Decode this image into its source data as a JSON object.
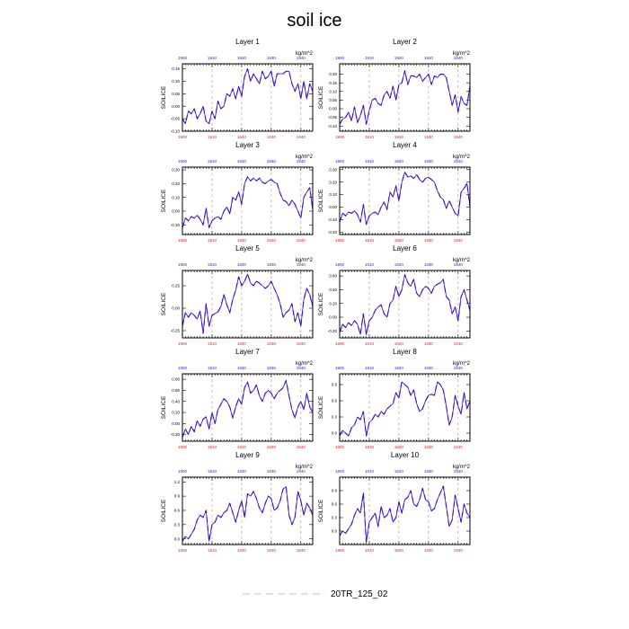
{
  "figure": {
    "title": "soil ice",
    "legend": {
      "label": "20TR_125_02",
      "line_color": "#c9b4ee"
    },
    "colors": {
      "series": "#1d10d6",
      "series_overlay": "#b13bd3",
      "top_tick_labels": "#1a1aff",
      "bottom_tick_labels": "#e61919",
      "grid": "#9a9a9a"
    }
  },
  "chart_data": [
    {
      "type": "line",
      "title": "Layer 1",
      "ylabel": "SOILICE",
      "units": "kg/m^2",
      "xlim": [
        1900,
        1944
      ],
      "ylim": [
        -0.1,
        0.17
      ],
      "x_ticks": [
        1900,
        1910,
        1920,
        1930,
        1940
      ],
      "y_ticks": [
        -0.1,
        -0.05,
        0.0,
        0.05,
        0.1,
        0.15
      ],
      "y_tick_labels": [
        "-0.10",
        "-0.05",
        "0.00",
        "0.05",
        "0.10",
        "0.15"
      ],
      "grid": "vertical dashed at x ticks",
      "series": [
        {
          "x_start": 1900,
          "values": [
            -0.05,
            -0.07,
            -0.02,
            -0.03,
            -0.01,
            -0.05,
            -0.03,
            0.0,
            -0.06,
            -0.07,
            -0.02,
            -0.05,
            0.02,
            -0.01,
            0.0,
            0.05,
            0.04,
            0.07,
            0.03,
            0.08,
            0.04,
            0.12,
            0.15,
            0.1,
            0.13,
            0.11,
            0.09,
            0.14,
            0.11,
            0.12,
            0.14,
            0.08,
            0.13,
            0.13,
            0.13,
            0.14,
            0.14,
            0.09,
            0.06,
            0.09,
            0.03,
            0.1,
            0.03,
            0.09,
            0.06
          ]
        }
      ]
    },
    {
      "type": "line",
      "title": "Layer 2",
      "ylabel": "SOILICE",
      "units": "kg/m^2",
      "xlim": [
        1900,
        1944
      ],
      "ylim": [
        -0.13,
        0.26
      ],
      "x_ticks": [
        1900,
        1910,
        1920,
        1930,
        1940
      ],
      "y_ticks": [
        -0.1,
        -0.05,
        0.0,
        0.05,
        0.1,
        0.15,
        0.2
      ],
      "y_tick_labels": [
        "-0.10",
        "-0.05",
        "0.00",
        "0.05",
        "0.10",
        "0.15",
        "0.20"
      ],
      "grid": "vertical dashed at x ticks",
      "series": [
        {
          "x_start": 1900,
          "values": [
            -0.09,
            -0.06,
            -0.05,
            -0.02,
            -0.07,
            0.01,
            -0.08,
            -0.04,
            0.02,
            -0.09,
            -0.01,
            0.05,
            0.06,
            0.03,
            0.02,
            0.08,
            0.1,
            0.06,
            0.13,
            0.05,
            0.14,
            0.15,
            0.22,
            0.14,
            0.19,
            0.19,
            0.18,
            0.2,
            0.16,
            0.18,
            0.2,
            0.14,
            0.19,
            0.18,
            0.2,
            0.2,
            0.18,
            0.1,
            0.02,
            0.08,
            -0.02,
            0.07,
            0.03,
            0.02,
            0.13
          ]
        }
      ]
    },
    {
      "type": "line",
      "title": "Layer 3",
      "ylabel": "SOILICE",
      "units": "kg/m^2",
      "xlim": [
        1900,
        1944
      ],
      "ylim": [
        -0.17,
        0.32
      ],
      "x_ticks": [
        1900,
        1910,
        1920,
        1930,
        1940
      ],
      "y_ticks": [
        -0.1,
        0.0,
        0.1,
        0.2,
        0.3
      ],
      "y_tick_labels": [
        "-0.10",
        "0.00",
        "0.10",
        "0.20",
        "0.30"
      ],
      "grid": "vertical dashed at x ticks",
      "series": [
        {
          "x_start": 1900,
          "values": [
            -0.12,
            -0.05,
            -0.07,
            -0.04,
            -0.05,
            -0.03,
            -0.06,
            -0.1,
            0.02,
            -0.12,
            -0.07,
            -0.05,
            -0.04,
            -0.06,
            0.0,
            0.03,
            -0.02,
            0.1,
            0.08,
            0.14,
            0.05,
            0.2,
            0.25,
            0.22,
            0.24,
            0.22,
            0.24,
            0.21,
            0.2,
            0.22,
            0.23,
            0.21,
            0.2,
            0.13,
            0.08,
            0.07,
            0.04,
            0.08,
            0.05,
            0.0,
            -0.05,
            0.1,
            0.14,
            0.17,
            0.01
          ]
        }
      ]
    },
    {
      "type": "line",
      "title": "Layer 4",
      "ylabel": "SOILICE",
      "units": "kg/m^2",
      "xlim": [
        1900,
        1944
      ],
      "ylim": [
        -0.22,
        0.32
      ],
      "x_ticks": [
        1900,
        1910,
        1920,
        1930,
        1940
      ],
      "y_ticks": [
        -0.2,
        -0.1,
        0.0,
        0.1,
        0.2,
        0.3
      ],
      "y_tick_labels": [
        "-0.20",
        "-0.10",
        "0.00",
        "0.10",
        "0.20",
        "0.30"
      ],
      "grid": "vertical dashed at x ticks",
      "series": [
        {
          "x_start": 1900,
          "values": [
            -0.12,
            -0.05,
            -0.07,
            -0.04,
            -0.05,
            -0.03,
            -0.06,
            -0.12,
            0.02,
            -0.14,
            -0.07,
            -0.05,
            -0.04,
            -0.06,
            0.0,
            0.04,
            -0.02,
            0.12,
            0.08,
            0.17,
            0.05,
            0.2,
            0.28,
            0.24,
            0.25,
            0.23,
            0.26,
            0.22,
            0.2,
            0.23,
            0.24,
            0.22,
            0.2,
            0.13,
            0.08,
            0.06,
            -0.01,
            0.05,
            0.0,
            -0.05,
            -0.07,
            0.12,
            0.15,
            0.19,
            0.0
          ]
        }
      ]
    },
    {
      "type": "line",
      "title": "Layer 5",
      "ylabel": "SOILICE",
      "units": "kg/m^2",
      "xlim": [
        1900,
        1944
      ],
      "ylim": [
        -0.33,
        0.42
      ],
      "x_ticks": [
        1900,
        1910,
        1920,
        1930,
        1940
      ],
      "y_ticks": [
        -0.25,
        0.0,
        0.25
      ],
      "y_tick_labels": [
        "-0.25",
        "0.00",
        "0.25"
      ],
      "grid": "vertical dashed at x ticks",
      "series": [
        {
          "x_start": 1900,
          "values": [
            -0.2,
            -0.05,
            -0.1,
            -0.05,
            -0.08,
            -0.12,
            -0.03,
            -0.28,
            0.05,
            -0.2,
            -0.08,
            -0.06,
            -0.04,
            0.02,
            0.15,
            0.04,
            -0.05,
            0.1,
            0.2,
            0.35,
            0.25,
            0.3,
            0.38,
            0.28,
            0.25,
            0.3,
            0.28,
            0.25,
            0.22,
            0.25,
            0.3,
            0.22,
            0.15,
            0.05,
            -0.1,
            -0.05,
            -0.02,
            0.05,
            -0.15,
            -0.05,
            -0.2,
            0.1,
            0.22,
            0.15,
            0.02
          ]
        }
      ]
    },
    {
      "type": "line",
      "title": "Layer 6",
      "ylabel": "SOILICE",
      "units": "kg/m^2",
      "xlim": [
        1900,
        1944
      ],
      "ylim": [
        -0.3,
        0.68
      ],
      "x_ticks": [
        1900,
        1910,
        1920,
        1930,
        1940
      ],
      "y_ticks": [
        -0.2,
        0.0,
        0.2,
        0.4,
        0.6
      ],
      "y_tick_labels": [
        "-0.20",
        "0.00",
        "0.20",
        "0.40",
        "0.60"
      ],
      "grid": "vertical dashed at x ticks",
      "series": [
        {
          "x_start": 1900,
          "values": [
            -0.22,
            -0.1,
            -0.15,
            -0.08,
            -0.12,
            -0.05,
            -0.1,
            -0.25,
            0.05,
            -0.25,
            -0.05,
            0.0,
            0.1,
            0.15,
            0.18,
            0.05,
            0.0,
            0.2,
            0.25,
            0.45,
            0.3,
            0.4,
            0.62,
            0.5,
            0.45,
            0.55,
            0.35,
            0.3,
            0.4,
            0.45,
            0.42,
            0.35,
            0.45,
            0.48,
            0.5,
            0.55,
            0.3,
            0.25,
            0.05,
            0.15,
            -0.05,
            0.3,
            0.4,
            0.25,
            0.1
          ]
        }
      ]
    },
    {
      "type": "line",
      "title": "Layer 7",
      "ylabel": "SOILICE",
      "units": "kg/m^2",
      "xlim": [
        1900,
        1944
      ],
      "ylim": [
        -0.32,
        0.9
      ],
      "x_ticks": [
        1900,
        1910,
        1920,
        1930,
        1940
      ],
      "y_ticks": [
        -0.2,
        0.0,
        0.2,
        0.4,
        0.6,
        0.8
      ],
      "y_tick_labels": [
        "-0.20",
        "0.00",
        "0.20",
        "0.40",
        "0.60",
        "0.80"
      ],
      "grid": "vertical dashed at x ticks",
      "series": [
        {
          "x_start": 1900,
          "values": [
            -0.25,
            -0.1,
            -0.2,
            -0.05,
            -0.15,
            0.05,
            -0.05,
            0.08,
            0.12,
            -0.1,
            0.2,
            0.0,
            0.25,
            0.35,
            0.45,
            0.4,
            0.3,
            0.1,
            0.3,
            0.45,
            0.35,
            0.65,
            0.75,
            0.55,
            0.6,
            0.7,
            0.5,
            0.4,
            0.55,
            0.6,
            0.55,
            0.45,
            0.55,
            0.6,
            0.65,
            0.78,
            0.5,
            0.25,
            0.1,
            0.3,
            0.4,
            0.25,
            0.55,
            0.3,
            0.2
          ]
        }
      ]
    },
    {
      "type": "line",
      "title": "Layer 8",
      "ylabel": "SOILICE",
      "units": "kg/m^2",
      "xlim": [
        1900,
        1944
      ],
      "ylim": [
        -0.15,
        1.1
      ],
      "x_ticks": [
        1900,
        1910,
        1920,
        1930,
        1940
      ],
      "y_ticks": [
        0.0,
        0.3,
        0.6,
        0.9
      ],
      "y_tick_labels": [
        "0.0",
        "0.3",
        "0.6",
        "0.9"
      ],
      "grid": "vertical dashed at x ticks",
      "series": [
        {
          "x_start": 1900,
          "values": [
            -0.05,
            0.05,
            0.0,
            -0.05,
            0.1,
            0.15,
            0.3,
            0.25,
            0.4,
            -0.05,
            0.2,
            0.25,
            0.35,
            0.3,
            0.4,
            0.35,
            0.45,
            0.5,
            0.55,
            0.75,
            0.65,
            0.95,
            0.9,
            0.85,
            0.7,
            0.8,
            0.55,
            0.4,
            0.45,
            0.6,
            0.7,
            0.72,
            0.7,
            0.95,
            0.9,
            0.8,
            0.5,
            0.15,
            0.3,
            0.7,
            0.5,
            0.35,
            0.75,
            0.45,
            0.6
          ]
        }
      ]
    },
    {
      "type": "line",
      "title": "Layer 9",
      "ylabel": "SOILICE",
      "units": "kg/m^2",
      "xlim": [
        1900,
        1944
      ],
      "ylim": [
        -0.12,
        1.3
      ],
      "x_ticks": [
        1900,
        1910,
        1920,
        1930,
        1940
      ],
      "y_ticks": [
        0.0,
        0.3,
        0.6,
        0.9,
        1.2
      ],
      "y_tick_labels": [
        "0.0",
        "0.3",
        "0.6",
        "0.9",
        "1.2"
      ],
      "grid": "vertical dashed at x ticks",
      "series": [
        {
          "x_start": 1900,
          "values": [
            -0.05,
            0.05,
            0.0,
            0.1,
            0.2,
            0.4,
            0.5,
            0.45,
            0.6,
            -0.05,
            0.3,
            0.35,
            0.5,
            0.45,
            0.55,
            0.6,
            0.75,
            0.55,
            0.35,
            0.6,
            0.8,
            0.45,
            0.95,
            0.9,
            1.0,
            0.85,
            0.65,
            0.55,
            0.75,
            0.9,
            0.85,
            0.6,
            0.65,
            0.8,
            1.05,
            1.1,
            0.5,
            0.3,
            0.45,
            1.0,
            0.8,
            0.5,
            0.75,
            0.65,
            0.5
          ]
        }
      ]
    },
    {
      "type": "line",
      "title": "Layer 10",
      "ylabel": "SOILICE",
      "units": "kg/m^2",
      "xlim": [
        1900,
        1944
      ],
      "ylim": [
        -0.3,
        1.2
      ],
      "x_ticks": [
        1900,
        1910,
        1920,
        1930,
        1940
      ],
      "y_ticks": [
        0.0,
        0.3,
        0.6,
        0.9
      ],
      "y_tick_labels": [
        "0.0",
        "0.3",
        "0.6",
        "0.9"
      ],
      "grid": "vertical dashed at x ticks",
      "series": [
        {
          "x_start": 1900,
          "values": [
            -0.1,
            0.0,
            -0.05,
            0.05,
            0.15,
            0.35,
            0.5,
            0.4,
            0.85,
            -0.25,
            0.2,
            0.3,
            0.4,
            0.1,
            0.55,
            0.3,
            0.35,
            0.5,
            0.2,
            0.3,
            0.65,
            0.4,
            0.7,
            0.75,
            0.9,
            0.6,
            0.55,
            0.7,
            0.95,
            0.7,
            0.65,
            0.45,
            0.5,
            0.7,
            0.85,
            1.0,
            0.55,
            0.1,
            0.25,
            0.8,
            0.5,
            0.2,
            0.6,
            0.4,
            0.3
          ]
        }
      ]
    }
  ]
}
